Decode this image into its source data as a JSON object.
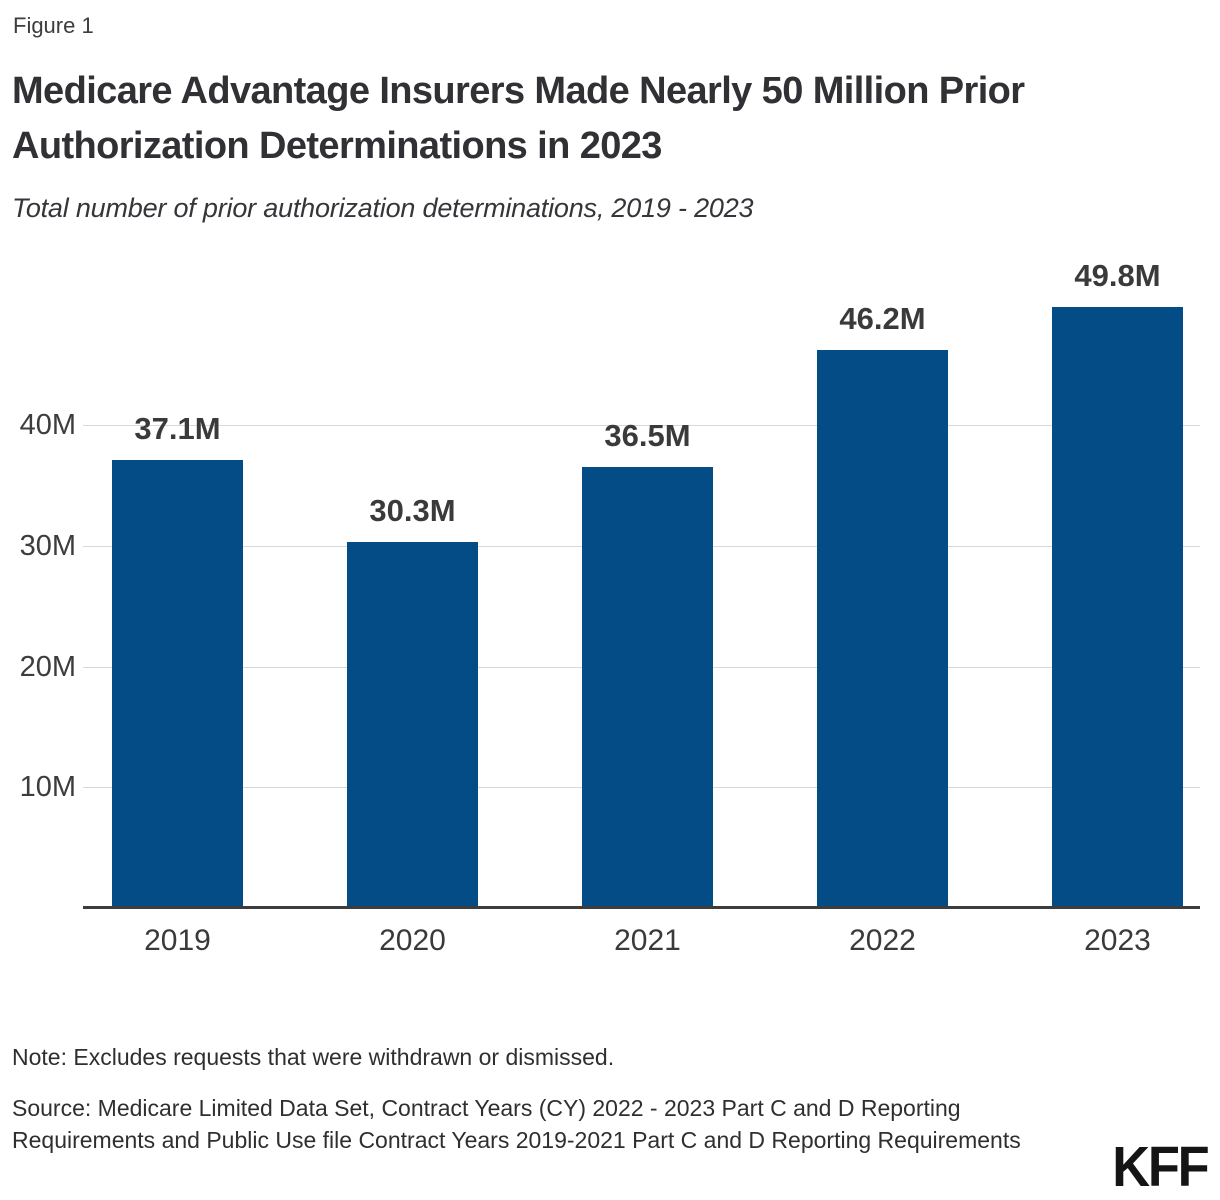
{
  "figure_label": "Figure 1",
  "title": "Medicare Advantage Insurers Made Nearly 50 Million Prior Authorization Determinations in 2023",
  "subtitle": "Total number of prior authorization determinations, 2019 - 2023",
  "note": "Note: Excludes requests that were withdrawn or dismissed.",
  "source": "Source: Medicare Limited Data Set, Contract Years (CY) 2022 - 2023 Part C and D Reporting Requirements and Public Use file Contract Years 2019-2021 Part C and D Reporting Requirements",
  "logo_text": "KFF",
  "colors": {
    "bar": "#044C86",
    "gridline": "#d8d8d8",
    "axis": "#3d3d3d",
    "tick_text": "#3d3d3d",
    "label_text": "#3a3a3a",
    "logo": "#151515"
  },
  "chart_data": {
    "type": "bar",
    "categories": [
      "2019",
      "2020",
      "2021",
      "2022",
      "2023"
    ],
    "values": [
      37.1,
      30.3,
      36.5,
      46.2,
      49.8
    ],
    "value_labels": [
      "37.1M",
      "30.3M",
      "36.5M",
      "46.2M",
      "49.8M"
    ],
    "title": "Total number of prior authorization determinations, 2019 - 2023",
    "xlabel": "",
    "ylabel": "",
    "ylim": [
      0,
      54.5
    ],
    "yticks": [
      {
        "value": 10,
        "label": "10M"
      },
      {
        "value": 20,
        "label": "20M"
      },
      {
        "value": 30,
        "label": "30M"
      },
      {
        "value": 40,
        "label": "40M"
      }
    ],
    "grid": true,
    "legend": false,
    "unit": "millions of prior authorization determinations"
  }
}
